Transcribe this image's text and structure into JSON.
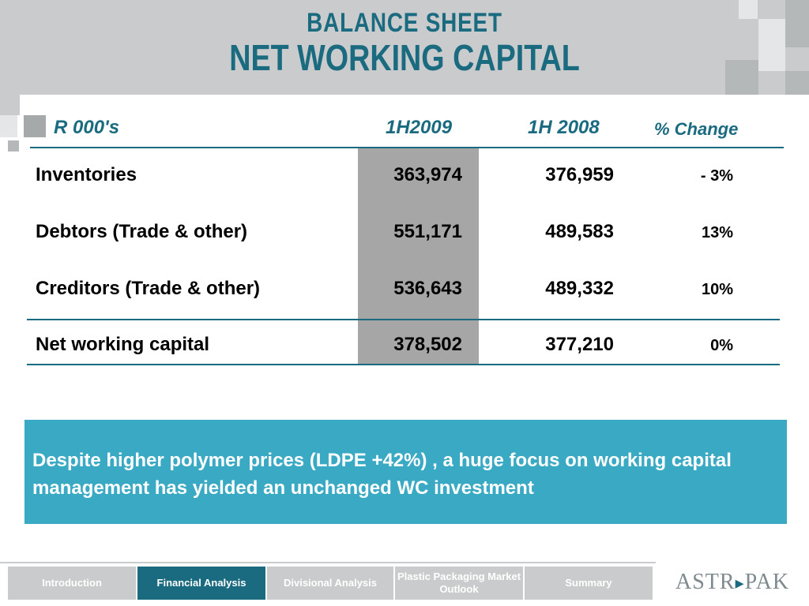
{
  "title": {
    "line1": "BALANCE  SHEET",
    "line2": "NET WORKING CAPITAL"
  },
  "table": {
    "headers": [
      "R 000's",
      "1H2009",
      "1H 2008",
      "% Change"
    ],
    "rows": [
      {
        "label": "Inventories",
        "h2009": "363,974",
        "h2008": "376,959",
        "change": "- 3%"
      },
      {
        "label": "Debtors (Trade & other)",
        "h2009": "551,171",
        "h2008": "489,583",
        "change": "13%"
      },
      {
        "label": "Creditors (Trade & other)",
        "h2009": "536,643",
        "h2008": "489,332",
        "change": "10%"
      },
      {
        "label": "Net working capital",
        "h2009": "378,502",
        "h2008": "377,210",
        "change": "0%"
      }
    ]
  },
  "callout": {
    "text": "Despite higher polymer prices (LDPE +42%) , a huge focus on working capital management has yielded an unchanged WC investment"
  },
  "nav": {
    "items": [
      "Introduction",
      "Financial Analysis",
      "Divisional Analysis",
      "Plastic Packaging Market Outlook",
      "Summary"
    ],
    "active": "Financial Analysis"
  },
  "logo": {
    "part1": "ASTR",
    "part2": "PAK"
  },
  "colors": {
    "accent": "#1a6a80",
    "callout_bg": "#3aa9c4",
    "highlight_col": "#a6a6a6",
    "header_band": "#c9cbcc"
  }
}
